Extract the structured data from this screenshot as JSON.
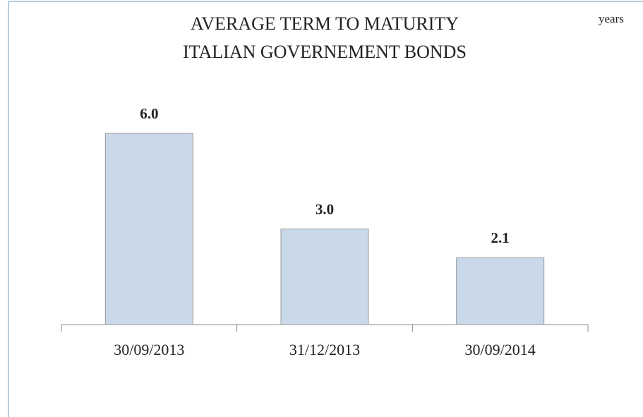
{
  "chart_data": {
    "type": "bar",
    "title": [
      "AVERAGE TERM TO MATURITY",
      "ITALIAN GOVERNEMENT BONDS"
    ],
    "unit_label": "years",
    "categories": [
      "30/09/2013",
      "31/12/2013",
      "30/09/2014"
    ],
    "values": [
      6.0,
      3.0,
      2.1
    ],
    "value_labels": [
      "6.0",
      "3.0",
      "2.1"
    ],
    "color": "#c9d9ea"
  }
}
